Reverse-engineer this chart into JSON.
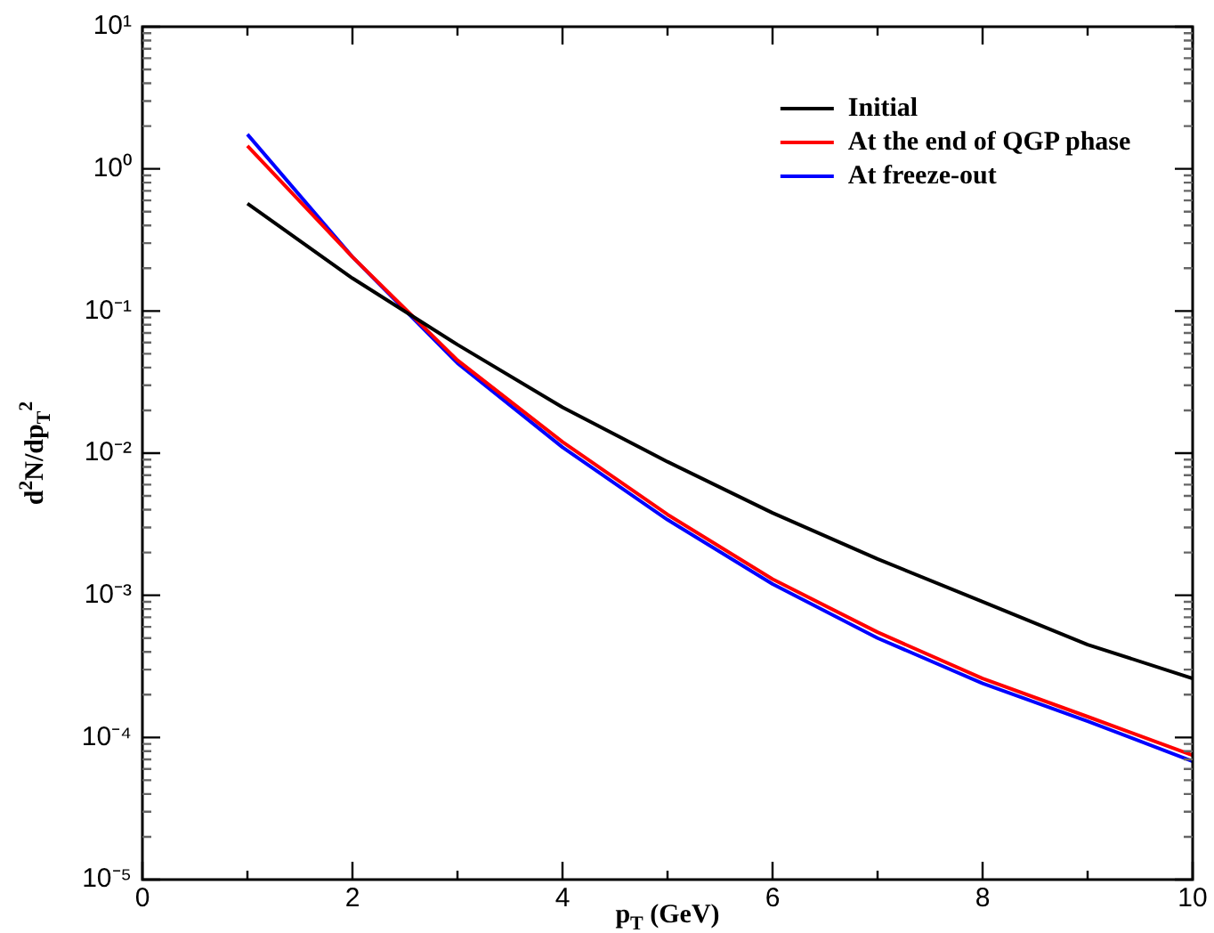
{
  "chart_data": {
    "type": "line",
    "xlabel": "p$_{T}$ (GeV)",
    "ylabel": "d$^{2}$N/dp$_{T}$$^{2}$",
    "log": "y",
    "legend": "top right",
    "grid": false,
    "marker": "none",
    "line_style": "solid",
    "x": [
      1,
      2,
      3,
      4,
      5,
      6,
      7,
      8,
      9,
      10
    ],
    "xlim": [
      0,
      10
    ],
    "xticks": [
      0,
      {
        "value": 1,
        "label": null
      },
      2,
      {
        "value": 3,
        "label": null
      },
      4,
      {
        "value": 5,
        "label": null
      },
      6,
      {
        "value": 7,
        "label": null
      },
      8,
      {
        "value": 9,
        "label": null
      },
      10
    ],
    "ylim": [
      1e-05,
      10
    ],
    "yticks": [
      {
        "value": 1e-05,
        "label": "10⁻⁵"
      },
      {
        "value": 0.0001,
        "label": "10⁻⁴"
      },
      {
        "value": 0.001,
        "label": "10⁻³"
      },
      {
        "value": 0.01,
        "label": "10⁻²"
      },
      {
        "value": 0.1,
        "label": "10⁻¹"
      },
      {
        "value": 1,
        "label": "10⁰"
      },
      {
        "value": 10,
        "label": "10¹"
      }
    ],
    "series": [
      {
        "name": "Initial",
        "color": "#000000",
        "values": [
          0.57,
          0.17,
          0.058,
          0.021,
          0.0087,
          0.0038,
          0.0018,
          0.0009,
          0.00045,
          0.00026
        ]
      },
      {
        "name": "At the end of QGP phase",
        "color": "#ff0000",
        "values": [
          1.45,
          0.24,
          0.045,
          0.012,
          0.0037,
          0.0013,
          0.00055,
          0.00026,
          0.00014,
          7.5e-05
        ]
      },
      {
        "name": "At freeze-out",
        "color": "#0000ff",
        "values": [
          1.75,
          0.24,
          0.043,
          0.011,
          0.0034,
          0.0012,
          0.0005,
          0.00024,
          0.00013,
          6.8e-05
        ]
      }
    ]
  }
}
